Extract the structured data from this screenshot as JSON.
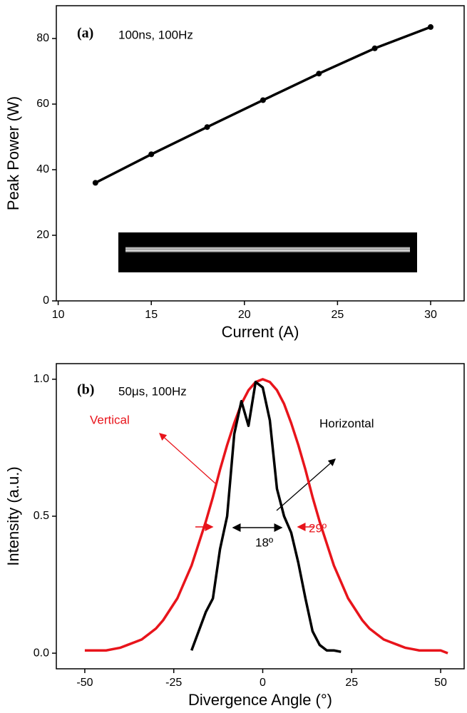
{
  "chart_data": [
    {
      "type": "line",
      "x_label": "Current (A)",
      "y_label": "Peak Power (W)",
      "x": [
        12,
        15,
        18,
        21,
        24,
        27,
        30
      ],
      "values": [
        36,
        44.7,
        53,
        61.2,
        69.3,
        77,
        83.5
      ],
      "color": "#000000",
      "markers": true,
      "xlim": [
        9.9,
        31.8
      ],
      "ylim": [
        0,
        90
      ],
      "xticks": [
        10,
        15,
        20,
        25,
        30
      ],
      "yticks": [
        0,
        20,
        40,
        60,
        80
      ],
      "annotations": [
        {
          "text": "(a)",
          "color": "#000000"
        },
        {
          "text": "100ns, 100Hz",
          "color": "#000000"
        }
      ]
    },
    {
      "type": "line",
      "x_label": "Divergence Angle (°)",
      "y_label": "Intensity (a.u.)",
      "x": [
        -52,
        -50,
        -48,
        -46,
        -44,
        -42,
        -40,
        -38,
        -36,
        -34,
        -32,
        -30,
        -28,
        -26,
        -24,
        -22,
        -20,
        -18,
        -16,
        -14,
        -12,
        -10,
        -8,
        -6,
        -4,
        -2,
        0,
        2,
        4,
        6,
        8,
        10,
        12,
        14,
        16,
        18,
        20,
        22,
        24,
        26,
        28,
        30,
        32,
        34,
        36,
        38,
        40,
        42,
        44,
        46,
        48,
        50,
        52
      ],
      "series": [
        {
          "name": "Vertical",
          "color": "#e8141b",
          "values": [
            null,
            0.01,
            0.01,
            0.01,
            0.01,
            0.015,
            0.02,
            0.03,
            0.04,
            0.05,
            0.07,
            0.09,
            0.12,
            0.16,
            0.2,
            0.26,
            0.32,
            0.4,
            0.48,
            0.57,
            0.67,
            0.76,
            0.84,
            0.91,
            0.96,
            0.99,
            1.0,
            0.99,
            0.96,
            0.91,
            0.84,
            0.76,
            0.67,
            0.57,
            0.48,
            0.4,
            0.32,
            0.26,
            0.2,
            0.16,
            0.12,
            0.09,
            0.07,
            0.05,
            0.04,
            0.03,
            0.02,
            0.015,
            0.01,
            0.01,
            0.01,
            0.01,
            0.0
          ]
        },
        {
          "name": "Horizontal",
          "color": "#000000",
          "values": [
            null,
            null,
            null,
            null,
            null,
            null,
            null,
            null,
            null,
            null,
            null,
            null,
            null,
            null,
            null,
            null,
            0.01,
            0.08,
            0.15,
            0.2,
            0.38,
            0.5,
            0.8,
            0.92,
            0.83,
            0.99,
            0.97,
            0.85,
            0.6,
            0.5,
            0.44,
            0.33,
            0.2,
            0.08,
            0.03,
            0.01,
            0.01,
            0.005,
            null,
            null,
            null,
            null,
            null,
            null,
            null,
            null,
            null,
            null,
            null,
            null,
            null,
            null,
            null
          ]
        }
      ],
      "xlim": [
        -58,
        56.6
      ],
      "ylim": [
        -0.057,
        1.057
      ],
      "xticks": [
        -50,
        -25,
        0,
        25,
        50
      ],
      "yticks": [
        {
          "value": 0,
          "label": "0.0"
        },
        0.5,
        {
          "value": 1,
          "label": "1.0"
        }
      ],
      "annotations": [
        {
          "text": "(b)",
          "color": "#000000"
        },
        {
          "text": "50μs, 100Hz",
          "color": "#000000"
        },
        {
          "text": "Vertical",
          "color": "#e8141b"
        },
        {
          "text": "Horizontal",
          "color": "#000000"
        },
        {
          "text": "18º",
          "color": "#000000"
        },
        {
          "text": "29º",
          "color": "#e8141b"
        }
      ]
    }
  ]
}
